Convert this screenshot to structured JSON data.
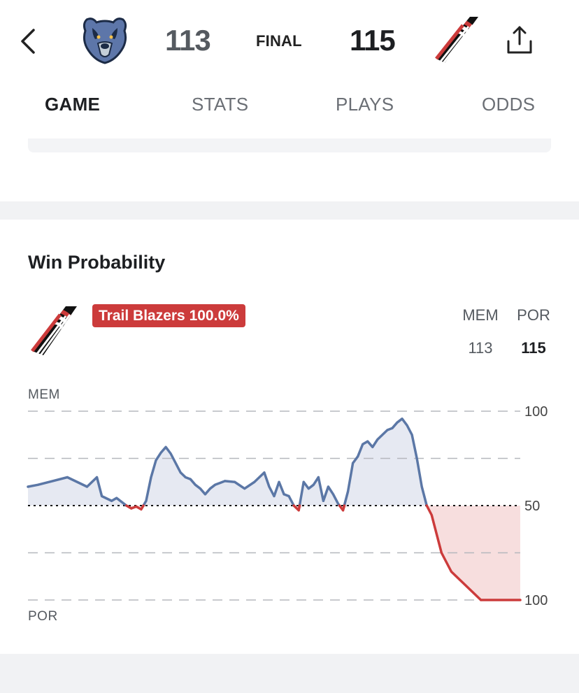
{
  "header": {
    "away_team": "MEM",
    "home_team": "POR",
    "away_score": "113",
    "home_score": "115",
    "status": "FINAL",
    "back_icon": "chevron-left-icon",
    "share_icon": "share-icon"
  },
  "tabs": [
    {
      "label": "GAME",
      "active": true
    },
    {
      "label": "STATS",
      "active": false
    },
    {
      "label": "PLAYS",
      "active": false
    },
    {
      "label": "ODDS",
      "active": false
    }
  ],
  "win_probability": {
    "title": "Win Probability",
    "leader_badge": "Trail Blazers 100.0%",
    "columns": [
      {
        "team": "MEM",
        "score": "113"
      },
      {
        "team": "POR",
        "score": "115"
      }
    ],
    "colors": {
      "mem": "#5b77a6",
      "por": "#cc3b3b",
      "mem_fill": "#e6e9f2",
      "por_fill": "#f7dede"
    }
  },
  "chart_data": {
    "type": "line",
    "top_label": "MEM",
    "bottom_label": "POR",
    "y_ticks": [
      "100",
      "50",
      "100"
    ],
    "ylim": [
      -100,
      100
    ],
    "xlim": [
      0,
      100
    ],
    "grid": true,
    "series": [
      {
        "x": [
          0,
          2,
          5,
          8,
          10,
          12,
          14,
          15,
          17,
          18,
          20,
          21,
          22,
          23,
          24,
          25,
          26,
          27,
          28,
          29,
          30,
          31,
          32,
          33,
          34,
          35,
          36,
          37,
          38,
          39,
          40,
          42,
          44,
          46,
          48,
          49,
          50,
          51,
          52,
          53,
          54,
          55,
          56,
          57,
          58,
          59,
          60,
          61,
          62,
          63,
          64,
          65,
          66,
          67,
          68,
          69,
          70,
          71,
          72,
          73,
          74,
          75,
          76,
          77,
          78,
          79,
          80,
          81,
          82,
          83,
          84,
          85,
          86,
          87,
          88,
          89,
          90,
          91,
          92,
          93,
          94,
          96,
          98,
          100
        ],
        "values": [
          20,
          22,
          26,
          30,
          25,
          20,
          30,
          10,
          5,
          8,
          0,
          -3,
          -1,
          -4,
          5,
          30,
          48,
          56,
          62,
          55,
          45,
          35,
          30,
          28,
          22,
          18,
          12,
          18,
          22,
          24,
          26,
          25,
          18,
          25,
          35,
          20,
          10,
          25,
          12,
          10,
          0,
          -5,
          25,
          18,
          22,
          30,
          5,
          20,
          12,
          2,
          -5,
          15,
          45,
          52,
          65,
          68,
          62,
          70,
          75,
          80,
          82,
          88,
          92,
          85,
          75,
          50,
          20,
          0,
          -10,
          -30,
          -50,
          -60,
          -70,
          -75,
          -80,
          -85,
          -90,
          -95,
          -100,
          -100,
          -100,
          -100,
          -100,
          -100
        ]
      }
    ]
  }
}
